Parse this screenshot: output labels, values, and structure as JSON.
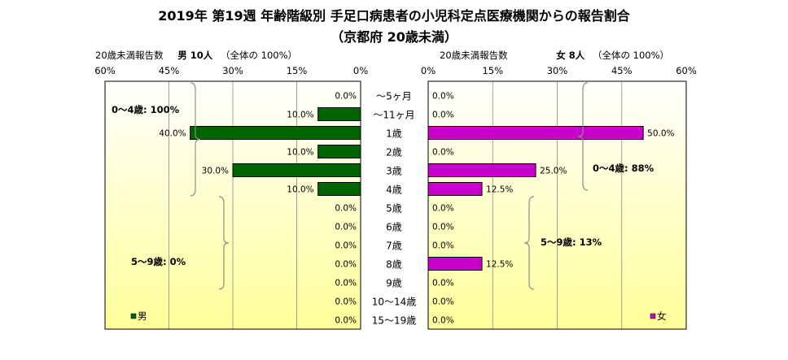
{
  "title": "2019年 第19週 年齢階級別 手足口病患者の小児科定点医療機関からの報告割合",
  "subtitle": "（京都府 20歳未満）",
  "left_header": {
    "prefix": "20歳未満報告数",
    "count_label": "男  10人",
    "total": "（全体の  100%）"
  },
  "right_header": {
    "prefix": "20歳未満報告数",
    "count_label": "女  8人",
    "total": "（全体の  100%）"
  },
  "colors": {
    "male": "#006400",
    "female": "#cc00cc",
    "plot_bg_top": "#ffffff",
    "plot_bg_bottom": "#ffff99"
  },
  "chart_data": [
    {
      "type": "bar",
      "orientation": "horizontal",
      "direction": "right-to-left",
      "categories": [
        "～5ヶ月",
        "～11ヶ月",
        "1歳",
        "2歳",
        "3歳",
        "4歳",
        "5歳",
        "6歳",
        "7歳",
        "8歳",
        "9歳",
        "10～14歳",
        "15～19歳"
      ],
      "series": [
        {
          "name": "男",
          "values": [
            0.0,
            10.0,
            40.0,
            10.0,
            30.0,
            10.0,
            0.0,
            0.0,
            0.0,
            0.0,
            0.0,
            0.0,
            0.0
          ]
        }
      ],
      "data_labels": [
        "0.0%",
        "10.0%",
        "40.0%",
        "10.0%",
        "30.0%",
        "10.0%",
        "0.0%",
        "0.0%",
        "0.0%",
        "0.0%",
        "0.0%",
        "0.0%",
        "0.0%"
      ],
      "xlim": [
        0,
        60
      ],
      "ticks": [
        "60%",
        "45%",
        "30%",
        "15%",
        "0%"
      ],
      "annotations": [
        {
          "text": "0～4歳: 100%",
          "covers": [
            "～5ヶ月",
            "4歳"
          ]
        },
        {
          "text": "5～9歳: 0%",
          "covers": [
            "5歳",
            "9歳"
          ]
        }
      ],
      "legend": "bottom-left"
    },
    {
      "type": "bar",
      "orientation": "horizontal",
      "direction": "left-to-right",
      "categories": [
        "～5ヶ月",
        "～11ヶ月",
        "1歳",
        "2歳",
        "3歳",
        "4歳",
        "5歳",
        "6歳",
        "7歳",
        "8歳",
        "9歳",
        "10～14歳",
        "15～19歳"
      ],
      "series": [
        {
          "name": "女",
          "values": [
            0.0,
            0.0,
            50.0,
            0.0,
            25.0,
            12.5,
            0.0,
            0.0,
            0.0,
            12.5,
            0.0,
            0.0,
            0.0
          ]
        }
      ],
      "data_labels": [
        "0.0%",
        "0.0%",
        "50.0%",
        "0.0%",
        "25.0%",
        "12.5%",
        "0.0%",
        "0.0%",
        "0.0%",
        "12.5%",
        "0.0%",
        "0.0%",
        "0.0%"
      ],
      "xlim": [
        0,
        60
      ],
      "ticks": [
        "0%",
        "15%",
        "30%",
        "45%",
        "60%"
      ],
      "annotations": [
        {
          "text": "0～4歳: 88%",
          "covers": [
            "～5ヶ月",
            "4歳"
          ]
        },
        {
          "text": "5～9歳: 13%",
          "covers": [
            "5歳",
            "9歳"
          ]
        }
      ],
      "legend": "bottom-right"
    }
  ]
}
